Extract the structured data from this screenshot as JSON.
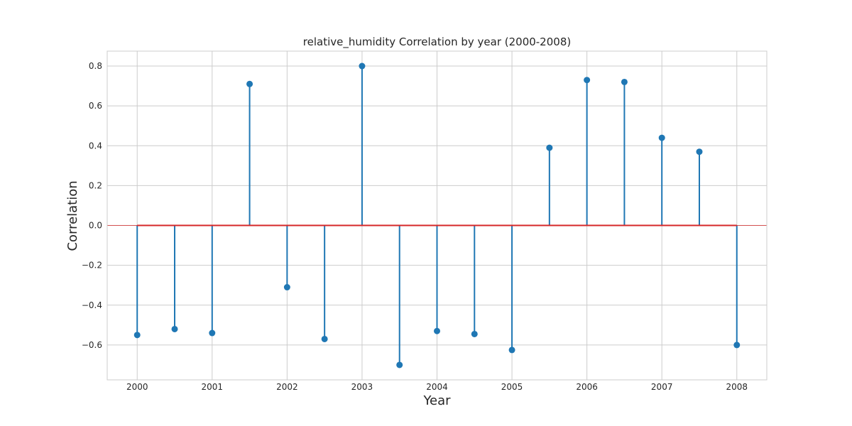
{
  "chart_data": {
    "type": "stem",
    "title": "relative_humidity Correlation by year (2000-2008)",
    "xlabel": "Year",
    "ylabel": "Correlation",
    "x": [
      2000,
      2000.5,
      2001,
      2001.5,
      2002,
      2002.5,
      2003,
      2003.5,
      2004,
      2004.5,
      2005,
      2005.5,
      2006,
      2006.5,
      2007,
      2007.5,
      2008
    ],
    "y": [
      -0.55,
      -0.52,
      -0.54,
      0.71,
      -0.31,
      -0.57,
      0.8,
      -0.7,
      -0.53,
      -0.545,
      -0.625,
      0.39,
      0.73,
      0.72,
      0.44,
      0.37,
      -0.6
    ],
    "xlim": [
      1999.6,
      2008.4
    ],
    "ylim": [
      -0.775,
      0.875
    ],
    "xticks": [
      2000,
      2001,
      2002,
      2003,
      2004,
      2005,
      2006,
      2007,
      2008
    ],
    "xtick_labels": [
      "2000",
      "2001",
      "2002",
      "2003",
      "2004",
      "2005",
      "2006",
      "2007",
      "2008"
    ],
    "yticks": [
      -0.6,
      -0.4,
      -0.2,
      0.0,
      0.2,
      0.4,
      0.6,
      0.8
    ],
    "ytick_labels": [
      "−0.6",
      "−0.4",
      "−0.2",
      "0.0",
      "0.2",
      "0.4",
      "0.6",
      "0.8"
    ],
    "baseline": 0,
    "grid": true,
    "colors": {
      "stem": "#1f77b4",
      "marker": "#1f77b4",
      "baseline": "#d62728",
      "grid": "#cccccc",
      "spine": "#cccccc"
    }
  }
}
